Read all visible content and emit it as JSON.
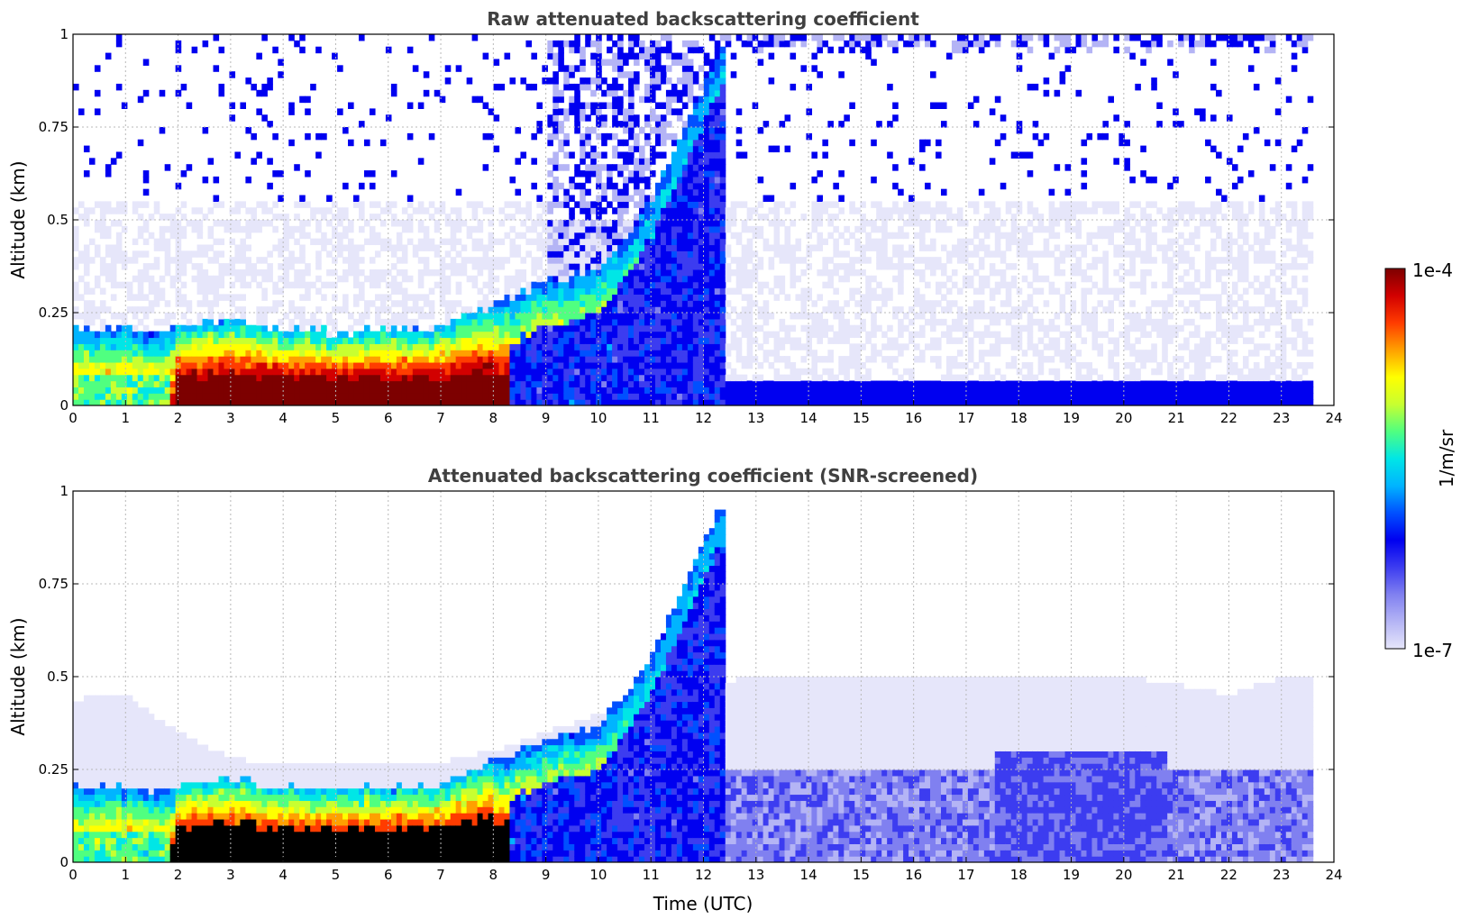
{
  "chart_data": [
    {
      "type": "heatmap",
      "title": "Raw attenuated backscattering coefficient",
      "xlabel": "",
      "ylabel": "Altitude (km)",
      "xlim": [
        0,
        24
      ],
      "ylim": [
        0,
        1
      ],
      "xticks": [
        "0",
        "1",
        "2",
        "3",
        "4",
        "5",
        "6",
        "7",
        "8",
        "9",
        "10",
        "11",
        "12",
        "13",
        "14",
        "15",
        "16",
        "17",
        "18",
        "19",
        "20",
        "21",
        "22",
        "23",
        "24"
      ],
      "yticks": [
        "0",
        "0.25",
        "0.5",
        "0.75",
        "1"
      ],
      "grid": true,
      "data_extent_hours": [
        0,
        23.6
      ],
      "layer_top_km": {
        "x": [
          0,
          0.5,
          1,
          1.5,
          2,
          2.5,
          3,
          4,
          5,
          6,
          7,
          7.5,
          8,
          8.5,
          9,
          9.5,
          10,
          10.5,
          11,
          11.5,
          12,
          12.3
        ],
        "y": [
          0.21,
          0.2,
          0.21,
          0.19,
          0.21,
          0.22,
          0.23,
          0.2,
          0.2,
          0.2,
          0.21,
          0.24,
          0.27,
          0.3,
          0.33,
          0.35,
          0.37,
          0.45,
          0.55,
          0.7,
          0.86,
          0.96
        ]
      },
      "surface_layer_top_km": 0.06,
      "high_noise_from_hours": 9
    },
    {
      "type": "heatmap",
      "title": "Attenuated backscattering coefficient (SNR-screened)",
      "xlabel": "Time (UTC)",
      "ylabel": "Altitude (km)",
      "xlim": [
        0,
        24
      ],
      "ylim": [
        0,
        1
      ],
      "xticks": [
        "0",
        "1",
        "2",
        "3",
        "4",
        "5",
        "6",
        "7",
        "8",
        "9",
        "10",
        "11",
        "12",
        "13",
        "14",
        "15",
        "16",
        "17",
        "18",
        "19",
        "20",
        "21",
        "22",
        "23",
        "24"
      ],
      "yticks": [
        "0",
        "0.25",
        "0.5",
        "0.75",
        "1"
      ],
      "grid": true,
      "data_extent_hours": [
        0,
        23.6
      ],
      "layer_top_km": {
        "x": [
          0,
          0.5,
          1,
          1.5,
          2,
          2.5,
          3,
          4,
          5,
          6,
          7,
          7.5,
          8,
          8.5,
          9,
          9.5,
          10,
          10.5,
          11,
          11.5,
          12,
          12.3
        ],
        "y": [
          0.21,
          0.2,
          0.21,
          0.19,
          0.21,
          0.22,
          0.23,
          0.2,
          0.2,
          0.2,
          0.21,
          0.24,
          0.27,
          0.3,
          0.33,
          0.35,
          0.37,
          0.45,
          0.55,
          0.7,
          0.86,
          0.96
        ]
      },
      "screened_haze_top_km": {
        "x": [
          0,
          1,
          2,
          3,
          4,
          6,
          7,
          8,
          9,
          10,
          11,
          13,
          15,
          17,
          19,
          20,
          21,
          22,
          23,
          23.6
        ],
        "y": [
          0.44,
          0.45,
          0.35,
          0.28,
          0.26,
          0.26,
          0.27,
          0.3,
          0.35,
          0.4,
          0.45,
          0.5,
          0.5,
          0.5,
          0.5,
          0.5,
          0.48,
          0.45,
          0.5,
          0.5
        ]
      }
    }
  ],
  "colorbar": {
    "label": "1/m/sr",
    "max_label": "1e-4",
    "min_label": "1e-7",
    "colors": [
      "#e6e6fa",
      "#b4b4f5",
      "#8080f0",
      "#3c3cf0",
      "#0000f0",
      "#0050ff",
      "#00b4ff",
      "#00e6e6",
      "#50ff80",
      "#c8ff30",
      "#ffff00",
      "#ffa000",
      "#ff3c00",
      "#d20000",
      "#7d0000"
    ]
  }
}
